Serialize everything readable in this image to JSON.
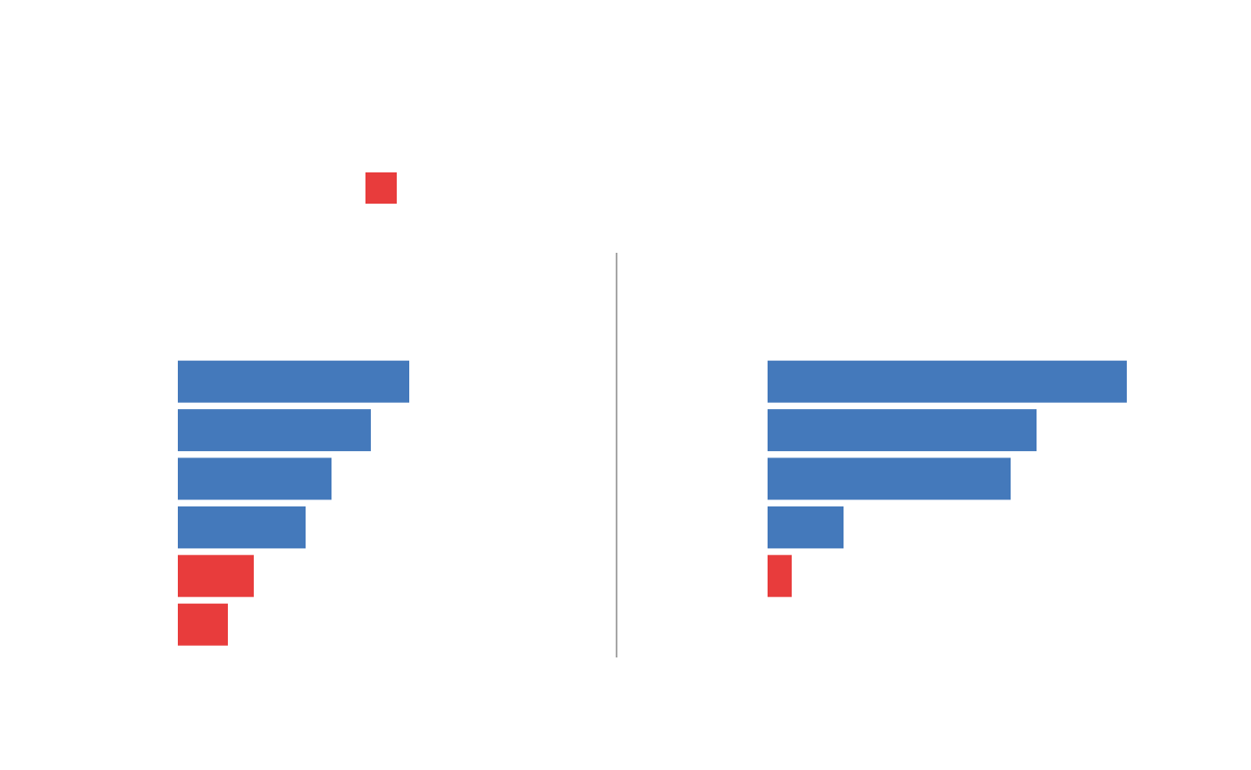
{
  "chart_data": [
    {
      "type": "bar",
      "orientation": "horizontal",
      "categories": [
        null,
        null,
        null,
        null,
        null,
        null
      ],
      "values": [
        259,
        216,
        172,
        143,
        85,
        56
      ],
      "colors": [
        "#4479bb",
        "#4479bb",
        "#4479bb",
        "#4479bb",
        "#e83c3c",
        "#e83c3c"
      ],
      "xlim": [
        0,
        420
      ]
    },
    {
      "type": "bar",
      "orientation": "horizontal",
      "categories": [
        null,
        null,
        null,
        null,
        null
      ],
      "values": [
        402,
        301,
        272,
        85,
        27
      ],
      "colors": [
        "#4479bb",
        "#4479bb",
        "#4479bb",
        "#4479bb",
        "#e83c3c"
      ],
      "xlim": [
        0,
        420
      ]
    }
  ]
}
